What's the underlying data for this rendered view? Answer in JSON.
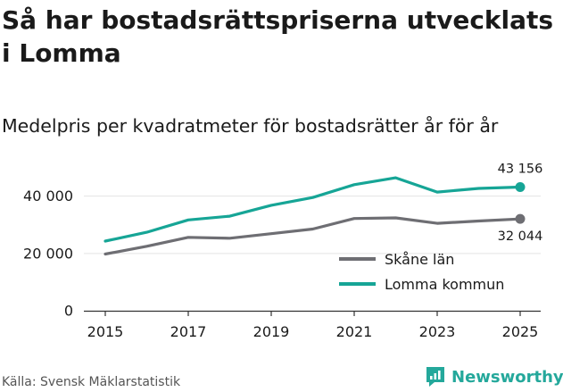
{
  "chart_data": {
    "type": "line",
    "title": "Så har bostadsrättspriserna utvecklats i Lomma",
    "subtitle": "Medelpris per kvadratmeter för bostadsrätter år för år",
    "x": [
      2015,
      2016,
      2017,
      2018,
      2019,
      2020,
      2021,
      2022,
      2023,
      2024,
      2025
    ],
    "x_tick_labels": [
      "2015",
      "2017",
      "2019",
      "2021",
      "2023",
      "2025"
    ],
    "x_ticks": [
      2015,
      2017,
      2019,
      2021,
      2023,
      2025
    ],
    "y_ticks": [
      0,
      20000,
      40000
    ],
    "y_tick_labels": [
      "0",
      "20 000",
      "40 000"
    ],
    "ylim": [
      0,
      43000
    ],
    "xlim": [
      2015,
      2025
    ],
    "series": [
      {
        "name": "Skåne län",
        "color": "#6e6e73",
        "values": [
          19800,
          22500,
          25600,
          25300,
          26900,
          28500,
          32200,
          32400,
          30500,
          31300,
          32044
        ],
        "end_label": "32 044"
      },
      {
        "name": "Lomma kommun",
        "color": "#16a596",
        "values": [
          24300,
          27400,
          31700,
          33000,
          36800,
          39500,
          44000,
          46400,
          41400,
          42700,
          43156
        ],
        "end_label": "43 156"
      }
    ],
    "legend_position": "bottom-right"
  },
  "source": "Källa: Svensk Mäklarstatistik",
  "brand": "Newsworthy",
  "brand_icon": "newsworthy-logo-icon"
}
